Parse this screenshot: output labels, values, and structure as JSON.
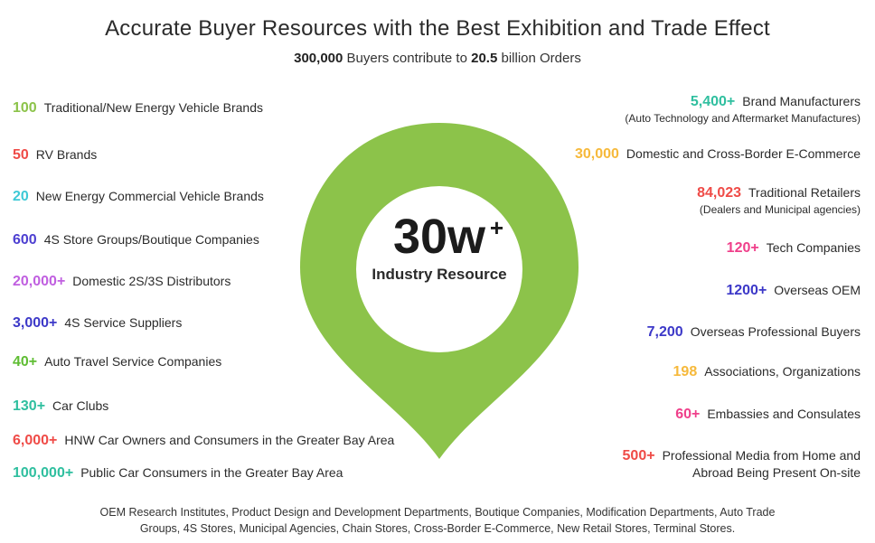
{
  "title": "Accurate Buyer Resources with the Best Exhibition and Trade Effect",
  "subtitle": {
    "buyers": "300,000",
    "mid": " Buyers contribute to ",
    "orders": "20.5",
    "end": " billion Orders"
  },
  "center": {
    "value": "30w",
    "sup": "+",
    "label": "Industry Resource",
    "pin_color": "#8cc34a"
  },
  "left_items": [
    {
      "num": "100",
      "label": "Traditional/New Energy Vehicle Brands",
      "color": "#8cc34a"
    },
    {
      "num": "50",
      "label": "RV Brands",
      "color": "#ef4b47"
    },
    {
      "num": "20",
      "label": "New Energy Commercial Vehicle Brands",
      "color": "#3ec9d6"
    },
    {
      "num": "600",
      "label": "4S Store Groups/Boutique Companies",
      "color": "#4d3fd1"
    },
    {
      "num": "20,000+",
      "label": "Domestic 2S/3S Distributors",
      "color": "#c05fe0"
    },
    {
      "num": "3,000+",
      "label": "4S Service Suppliers",
      "color": "#3c38c8"
    },
    {
      "num": "40+",
      "label": "Auto Travel Service Companies",
      "color": "#5fbd33"
    },
    {
      "num": "130+",
      "label": "Car Clubs",
      "color": "#2fbf9f"
    },
    {
      "num": "6,000+",
      "label": "HNW Car Owners and Consumers in the Greater Bay Area",
      "color": "#ef4b47"
    },
    {
      "num": "100,000+",
      "label": "Public Car Consumers in the Greater Bay Area",
      "color": "#2fbf9f"
    }
  ],
  "right_items": [
    {
      "num": "5,400+",
      "label": "Brand Manufacturers",
      "sub": "(Auto Technology and Aftermarket Manufactures)",
      "color": "#2fbf9f"
    },
    {
      "num": "30,000",
      "label": "Domestic and Cross-Border E-Commerce",
      "sub": "",
      "color": "#f6b93b"
    },
    {
      "num": "84,023",
      "label": "Traditional Retailers",
      "sub": "(Dealers and Municipal agencies)",
      "color": "#ef4b47"
    },
    {
      "num": "120+",
      "label": "Tech Companies",
      "sub": "",
      "color": "#ef3f8a"
    },
    {
      "num": "1200+",
      "label": "Overseas OEM",
      "sub": "",
      "color": "#3c38c8"
    },
    {
      "num": "7,200",
      "label": "Overseas Professional Buyers",
      "sub": "",
      "color": "#3c38c8"
    },
    {
      "num": "198",
      "label": "Associations, Organizations",
      "sub": "",
      "color": "#f6b93b"
    },
    {
      "num": "60+",
      "label": "Embassies and Consulates",
      "sub": "",
      "color": "#ef3f8a"
    },
    {
      "num": "500+",
      "label": "Professional Media from Home and",
      "sub": "Abroad Being Present On-site",
      "color": "#ef4b47"
    }
  ],
  "footer": {
    "line1": "OEM Research Institutes, Product Design and Development Departments, Boutique Companies, Modification Departments, Auto Trade",
    "line2": "Groups, 4S Stores, Municipal Agencies, Chain Stores, Cross-Border E-Commerce, New Retail Stores, Terminal Stores."
  }
}
